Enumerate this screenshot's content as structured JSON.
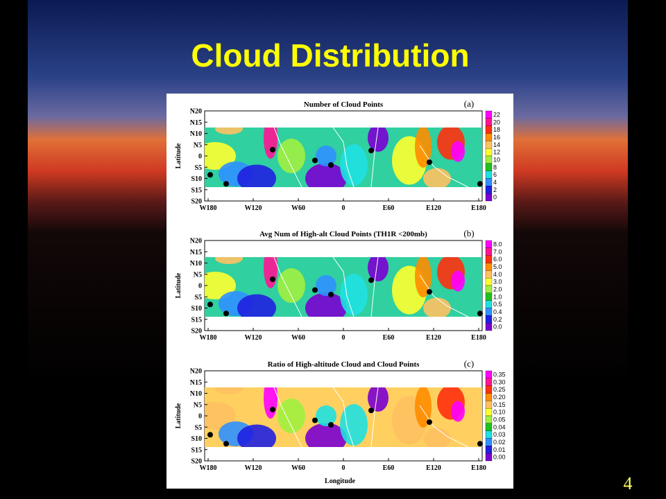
{
  "title": "Cloud Distribution",
  "page_number": "4",
  "x_axis_label": "Longitude",
  "panels": [
    {
      "title": "Number of Cloud Points",
      "tag": "(a)",
      "y_axis_label": "Latitude",
      "y_ticks": [
        "N20",
        "N15",
        "N10",
        "N5",
        "0",
        "S5",
        "S10",
        "S15",
        "S20"
      ],
      "x_ticks": [
        "W180",
        "W120",
        "W60",
        "0",
        "E60",
        "E120",
        "E180"
      ],
      "colorbar_labels": [
        "22",
        "20",
        "18",
        "16",
        "14",
        "12",
        "10",
        "8",
        "6",
        "4",
        "2",
        "0"
      ]
    },
    {
      "title": "Avg Num of High-alt Cloud Points (TH1R <200mb)",
      "tag": "(b)",
      "y_axis_label": "Latitude",
      "y_ticks": [
        "N20",
        "N15",
        "N10",
        "N5",
        "0",
        "S5",
        "S10",
        "S15",
        "S20"
      ],
      "x_ticks": [
        "W180",
        "W120",
        "W60",
        "0",
        "E60",
        "E120",
        "E180"
      ],
      "colorbar_labels": [
        "8.0",
        "7.0",
        "6.0",
        "5.0",
        "4.0",
        "3.0",
        "2.0",
        "1.0",
        "0.5",
        "0.4",
        "0.2",
        "0.0"
      ]
    },
    {
      "title": "Ratio of High-altitude Cloud and Cloud Points",
      "tag": "(c)",
      "y_axis_label": "Latitude",
      "y_ticks": [
        "N20",
        "N15",
        "N10",
        "N5",
        "0",
        "S5",
        "S10",
        "S15",
        "S20"
      ],
      "x_ticks": [
        "W180",
        "W120",
        "W60",
        "0",
        "E60",
        "E120",
        "E180"
      ],
      "colorbar_labels": [
        "0.35",
        "0.30",
        "0.25",
        "0.20",
        "0.15",
        "0.10",
        "0.05",
        "0.04",
        "0.03",
        "0.02",
        "0.01",
        "0.00"
      ]
    }
  ]
}
